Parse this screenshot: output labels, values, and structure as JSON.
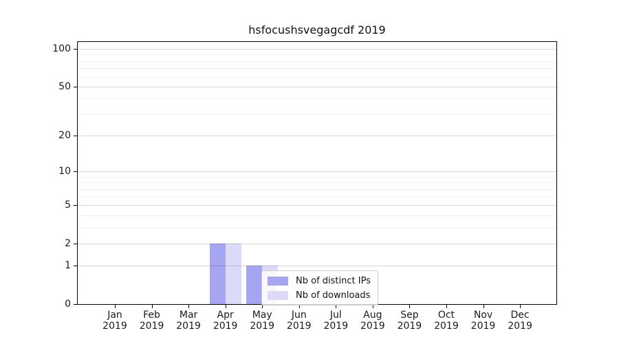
{
  "chart_data": {
    "type": "bar",
    "title": "hsfocushsvegagcdf 2019",
    "x_months": [
      "Jan",
      "Feb",
      "Mar",
      "Apr",
      "May",
      "Jun",
      "Jul",
      "Aug",
      "Sep",
      "Oct",
      "Nov",
      "Dec"
    ],
    "x_year": "2019",
    "series": [
      {
        "name": "Nb of distinct IPs",
        "color": "#a5a5f2",
        "values": [
          0,
          0,
          0,
          2,
          1,
          0,
          0,
          0,
          0,
          0,
          0,
          0
        ]
      },
      {
        "name": "Nb of downloads",
        "color": "#dbdbf9",
        "values": [
          0,
          0,
          0,
          2,
          1,
          0,
          0,
          0,
          0,
          0,
          0,
          0
        ]
      }
    ],
    "y_scale": "log10(1+x)",
    "y_major_ticks": [
      0,
      1,
      2,
      5,
      10,
      20,
      50,
      100
    ],
    "y_minor_ticks": [
      3,
      4,
      6,
      7,
      8,
      9,
      30,
      40,
      60,
      70,
      80,
      90
    ],
    "ylim": [
      0,
      113
    ],
    "grid": true,
    "legend": {
      "position": "inside-lower-center",
      "labels": [
        "Nb of distinct IPs",
        "Nb of downloads"
      ]
    }
  }
}
